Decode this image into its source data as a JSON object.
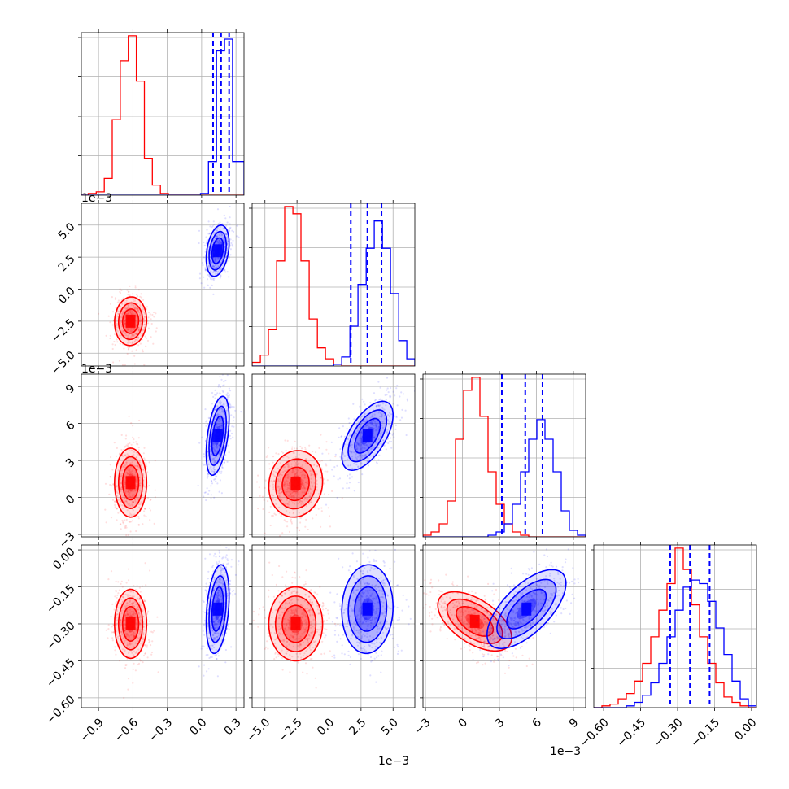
{
  "chart_data": {
    "type": "corner",
    "parameters": [
      {
        "scale_label": "1e−3",
        "range": [
          -1.05,
          0.37
        ],
        "ticks": [
          -0.9,
          -0.6,
          -0.3,
          0.0,
          0.3
        ],
        "tick_labels": [
          "−0.9",
          "−0.6",
          "−0.3",
          "0.0",
          "0.3"
        ]
      },
      {
        "scale_label": "1e−3",
        "range": [
          -6.0,
          6.7
        ],
        "ticks": [
          -5.0,
          -2.5,
          0.0,
          2.5,
          5.0
        ],
        "tick_labels": [
          "−5.0",
          "−2.5",
          "0.0",
          "2.5",
          "5.0"
        ]
      },
      {
        "scale_label": "1e−3",
        "range": [
          -3.2,
          10.0
        ],
        "ticks": [
          -3,
          0,
          3,
          6,
          9
        ],
        "tick_labels": [
          "−3",
          "0",
          "3",
          "6",
          "9"
        ]
      },
      {
        "scale_label": "",
        "range": [
          -0.64,
          0.02
        ],
        "ticks": [
          -0.6,
          -0.45,
          -0.3,
          -0.15,
          0.0
        ],
        "tick_labels": [
          "−0.60",
          "−0.45",
          "−0.30",
          "−0.15",
          "0.00"
        ]
      }
    ],
    "series": [
      {
        "color": "#ff0000",
        "histograms": [
          {
            "edges": [
              -1.05,
              -0.99,
              -0.92,
              -0.85,
              -0.78,
              -0.71,
              -0.64,
              -0.57,
              -0.5,
              -0.43,
              -0.36,
              -0.29,
              -0.22,
              -0.15,
              -0.08,
              -0.01,
              0.06,
              0.13,
              0.2,
              0.27,
              0.37
            ],
            "counts": [
              0,
              1,
              2,
              10,
              45,
              80,
              95,
              68,
              22,
              6,
              1,
              0,
              0,
              0,
              0,
              0,
              0,
              0,
              0,
              0
            ]
          },
          {
            "edges": [
              -6.0,
              -5.36,
              -4.73,
              -4.09,
              -3.46,
              -2.82,
              -2.19,
              -1.55,
              -0.91,
              -0.28,
              0.36,
              0.99,
              1.63,
              2.26,
              2.9,
              3.53,
              4.17,
              4.8,
              5.44,
              6.07,
              6.7
            ],
            "counts": [
              2,
              6,
              20,
              58,
              88,
              84,
              58,
              26,
              10,
              4,
              1,
              0,
              0,
              0,
              0,
              0,
              0,
              0,
              0,
              0
            ]
          },
          {
            "edges": [
              -3.2,
              -2.54,
              -1.88,
              -1.22,
              -0.56,
              0.1,
              0.76,
              1.42,
              2.08,
              2.74,
              3.4,
              4.06,
              4.72,
              5.38,
              6.04,
              6.7,
              7.36,
              8.02,
              8.68,
              9.34,
              10.0
            ],
            "counts": [
              1,
              3,
              8,
              22,
              60,
              90,
              98,
              74,
              40,
              20,
              8,
              3,
              1,
              0,
              0,
              0,
              0,
              0,
              0,
              0
            ]
          },
          {
            "edges": [
              -0.64,
              -0.607,
              -0.574,
              -0.541,
              -0.508,
              -0.475,
              -0.442,
              -0.409,
              -0.376,
              -0.343,
              -0.31,
              -0.277,
              -0.244,
              -0.211,
              -0.178,
              -0.145,
              -0.112,
              -0.079,
              -0.046,
              -0.013,
              0.02
            ],
            "counts": [
              0,
              1,
              2,
              5,
              8,
              15,
              25,
              40,
              55,
              70,
              90,
              78,
              58,
              40,
              25,
              14,
              6,
              3,
              1,
              0
            ]
          }
        ],
        "contours": {
          "1-0": {
            "mean": [
              -0.62,
              -2.5
            ],
            "sd": [
              0.07,
              0.95
            ],
            "rho": 0.05
          },
          "2-0": {
            "mean": [
              -0.62,
              1.2
            ],
            "sd": [
              0.07,
              1.4
            ],
            "rho": 0.0
          },
          "2-1": {
            "mean": [
              -2.6,
              1.1
            ],
            "sd": [
              1.05,
              1.35
            ],
            "rho": 0.08
          },
          "3-0": {
            "mean": [
              -0.62,
              -0.3
            ],
            "sd": [
              0.07,
              0.07
            ],
            "rho": 0.0
          },
          "3-1": {
            "mean": [
              -2.6,
              -0.3
            ],
            "sd": [
              1.05,
              0.075
            ],
            "rho": 0.0
          },
          "3-2": {
            "mean": [
              1.0,
              -0.29
            ],
            "sd": [
              1.5,
              0.06
            ],
            "rho": -0.55
          }
        }
      },
      {
        "color": "#0000ff",
        "histograms": [
          {
            "edges": [
              -1.05,
              -0.99,
              -0.92,
              -0.85,
              -0.78,
              -0.71,
              -0.64,
              -0.57,
              -0.5,
              -0.43,
              -0.36,
              -0.29,
              -0.22,
              -0.15,
              -0.08,
              -0.01,
              0.06,
              0.13,
              0.2,
              0.27,
              0.37
            ],
            "counts": [
              0,
              0,
              0,
              0,
              0,
              0,
              0,
              0,
              0,
              0,
              0,
              0,
              0,
              0,
              0,
              1,
              20,
              86,
              93,
              20
            ]
          },
          {
            "edges": [
              -6.0,
              -5.36,
              -4.73,
              -4.09,
              -3.46,
              -2.82,
              -2.19,
              -1.55,
              -0.91,
              -0.28,
              0.36,
              0.99,
              1.63,
              2.26,
              2.9,
              3.53,
              4.17,
              4.8,
              5.44,
              6.07,
              6.7
            ],
            "counts": [
              0,
              0,
              0,
              0,
              0,
              0,
              0,
              0,
              0,
              0,
              1,
              5,
              22,
              45,
              65,
              80,
              65,
              40,
              14,
              4
            ]
          },
          {
            "edges": [
              -3.2,
              -2.54,
              -1.88,
              -1.22,
              -0.56,
              0.1,
              0.76,
              1.42,
              2.08,
              2.74,
              3.4,
              4.06,
              4.72,
              5.38,
              6.04,
              6.7,
              7.36,
              8.02,
              8.68,
              9.34,
              10.0
            ],
            "counts": [
              0,
              0,
              0,
              0,
              0,
              0,
              0,
              0,
              1,
              3,
              8,
              20,
              40,
              60,
              72,
              60,
              40,
              16,
              4,
              1
            ]
          },
          {
            "edges": [
              -0.64,
              -0.607,
              -0.574,
              -0.541,
              -0.508,
              -0.475,
              -0.442,
              -0.409,
              -0.376,
              -0.343,
              -0.31,
              -0.277,
              -0.244,
              -0.211,
              -0.178,
              -0.145,
              -0.112,
              -0.079,
              -0.046,
              -0.013,
              0.02
            ],
            "counts": [
              0,
              0,
              0,
              0,
              1,
              3,
              7,
              14,
              25,
              40,
              55,
              68,
              72,
              70,
              60,
              45,
              30,
              15,
              5,
              1
            ]
          }
        ],
        "quantiles": [
          [
            0.1,
            0.17,
            0.24
          ],
          [
            1.7,
            3.0,
            4.1
          ],
          [
            3.2,
            5.1,
            6.5
          ],
          [
            -0.33,
            -0.25,
            -0.17
          ]
        ],
        "contours": {
          "1-0": {
            "mean": [
              0.14,
              3.0
            ],
            "sd": [
              0.05,
              1.0
            ],
            "rho": 0.3
          },
          "2-0": {
            "mean": [
              0.14,
              5.0
            ],
            "sd": [
              0.05,
              1.6
            ],
            "rho": 0.45
          },
          "2-1": {
            "mean": [
              3.0,
              5.0
            ],
            "sd": [
              1.0,
              1.4
            ],
            "rho": 0.6
          },
          "3-0": {
            "mean": [
              0.14,
              -0.24
            ],
            "sd": [
              0.05,
              0.09
            ],
            "rho": 0.3
          },
          "3-1": {
            "mean": [
              3.0,
              -0.24
            ],
            "sd": [
              1.0,
              0.09
            ],
            "rho": 0.05
          },
          "3-2": {
            "mean": [
              5.2,
              -0.24
            ],
            "sd": [
              1.6,
              0.08
            ],
            "rho": 0.65
          }
        }
      }
    ],
    "contour_levels": [
      0.5,
      1.0,
      1.5,
      2.0
    ],
    "grid": true
  }
}
